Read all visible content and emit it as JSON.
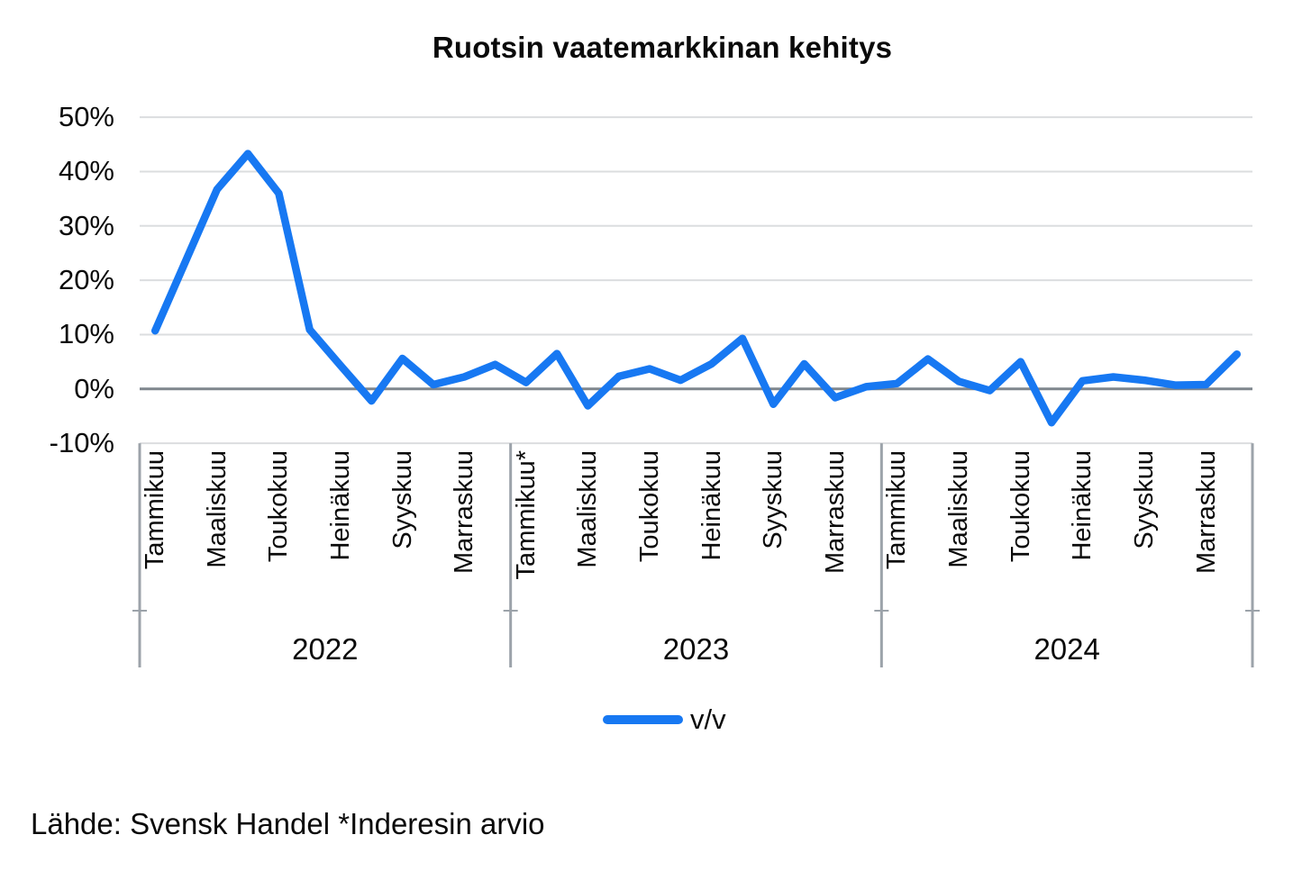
{
  "title": "Ruotsin vaatemarkkinan kehitys",
  "legend": {
    "label": "v/v"
  },
  "source": "Lähde: Svensk Handel *Inderesin arvio",
  "colors": {
    "line": "#1778F2",
    "gridline": "#DBDDDF",
    "zero_line": "#7F868D",
    "separator": "#9CA3AA",
    "text": "#0A0A0A",
    "background": "#FFFFFF"
  },
  "chart_data": {
    "type": "line",
    "title": "Ruotsin vaatemarkkinan kehitys",
    "xlabel": "",
    "ylabel": "",
    "unit": "percent, year-over-year",
    "ylim": [
      -10,
      50
    ],
    "grid": true,
    "legend_position": "bottom",
    "y_ticks": [
      {
        "value": 50,
        "label": "50%"
      },
      {
        "value": 40,
        "label": "40%"
      },
      {
        "value": 30,
        "label": "30%"
      },
      {
        "value": 20,
        "label": "20%"
      },
      {
        "value": 10,
        "label": "10%"
      },
      {
        "value": 0,
        "label": "0%"
      },
      {
        "value": -10,
        "label": "-10%"
      }
    ],
    "x_groups": [
      {
        "year": "2022",
        "months": 12,
        "labeled_month_indices": [
          0,
          2,
          4,
          6,
          8,
          10
        ],
        "month_labels": [
          "Tammikuu",
          "Maaliskuu",
          "Toukokuu",
          "Heinäkuu",
          "Syyskuu",
          "Marraskuu"
        ]
      },
      {
        "year": "2023",
        "months": 12,
        "labeled_month_indices": [
          0,
          2,
          4,
          6,
          8,
          10
        ],
        "month_labels": [
          "Tammikuu*",
          "Maaliskuu",
          "Toukokuu",
          "Heinäkuu",
          "Syyskuu",
          "Marraskuu"
        ]
      },
      {
        "year": "2024",
        "months": 12,
        "labeled_month_indices": [
          0,
          2,
          4,
          6,
          8,
          10
        ],
        "month_labels": [
          "Tammikuu",
          "Maaliskuu",
          "Toukokuu",
          "Heinäkuu",
          "Syyskuu",
          "Marraskuu"
        ]
      }
    ],
    "series": [
      {
        "name": "v/v",
        "values": [
          10.7,
          23.7,
          36.7,
          43.3,
          36.0,
          10.9,
          4.3,
          -2.2,
          5.6,
          0.8,
          2.2,
          4.5,
          1.2,
          6.5,
          -3.1,
          2.3,
          3.7,
          1.6,
          4.6,
          9.3,
          -2.8,
          4.6,
          -1.6,
          0.4,
          1.0,
          5.5,
          1.4,
          -0.3,
          5.0,
          -6.2,
          1.5,
          2.2,
          1.6,
          0.7,
          0.8,
          6.4
        ]
      }
    ]
  }
}
